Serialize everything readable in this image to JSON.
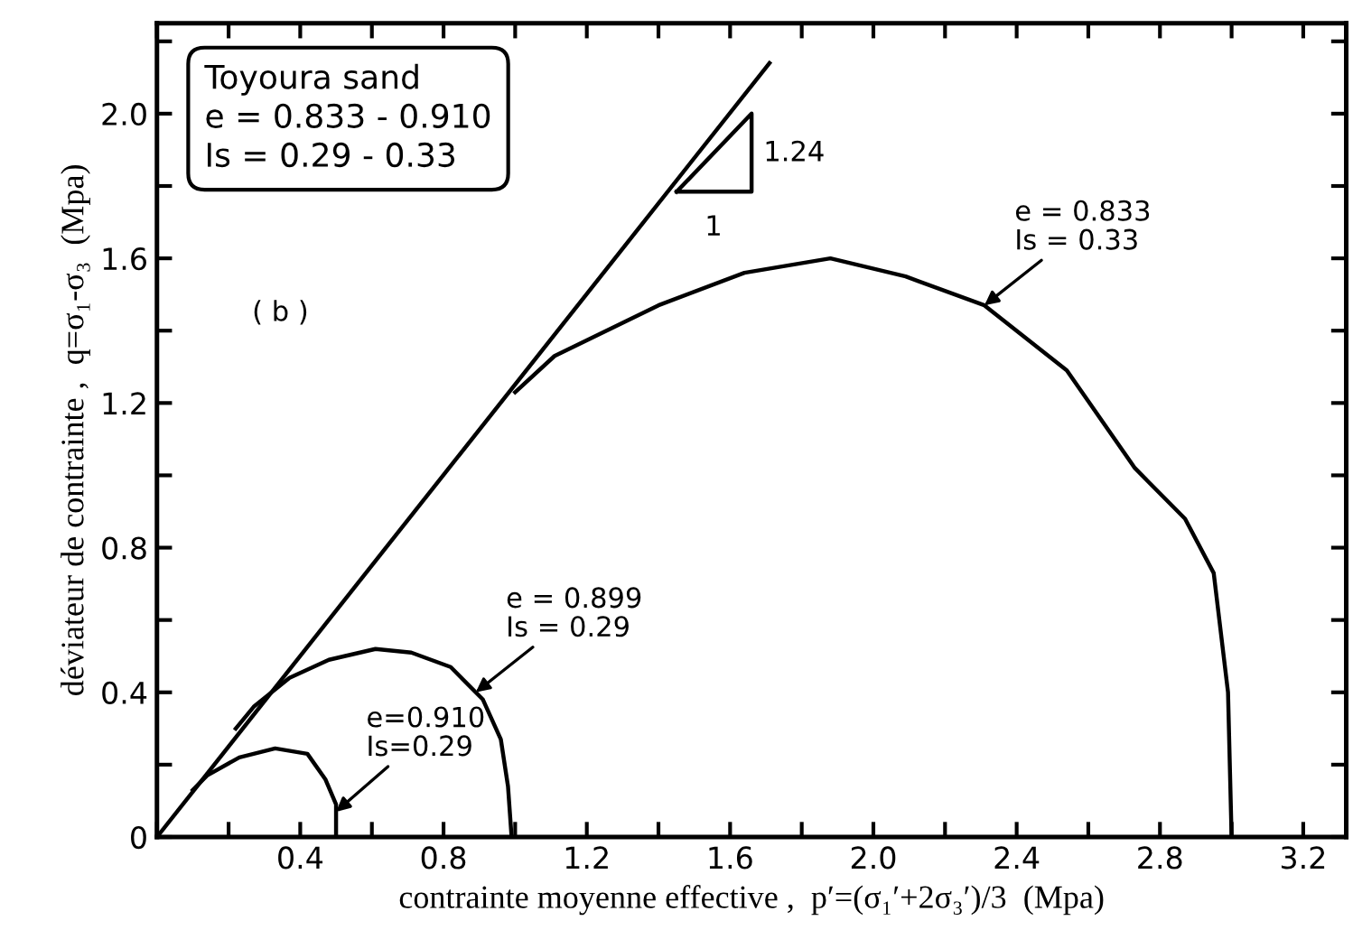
{
  "chart_data": {
    "type": "line",
    "xlabel": "contrainte moyenne effective ,  p′=(σ₁′+2σ₃′)/3  (Mpa)",
    "ylabel": "déviateur de contrainte ,  q=σ₁-σ₃  (Mpa)",
    "xlim": [
      0,
      3.32
    ],
    "ylim": [
      0,
      2.25
    ],
    "xticks": [
      {
        "value": 0,
        "label": null
      },
      {
        "value": 0.2,
        "label": null
      },
      0.4,
      {
        "value": 0.6,
        "label": null
      },
      0.8,
      {
        "value": 1.0,
        "label": null
      },
      1.2,
      {
        "value": 1.4,
        "label": null
      },
      1.6,
      {
        "value": 1.8,
        "label": null
      },
      {
        "value": 2.0,
        "label": "2.0"
      },
      {
        "value": 2.2,
        "label": null
      },
      2.4,
      {
        "value": 2.6,
        "label": null
      },
      2.8,
      {
        "value": 3.0,
        "label": null
      },
      3.2
    ],
    "yticks": [
      0,
      {
        "value": 0.2,
        "label": null
      },
      0.4,
      {
        "value": 0.6,
        "label": null
      },
      0.8,
      {
        "value": 1.0,
        "label": null
      },
      1.2,
      {
        "value": 1.4,
        "label": null
      },
      1.6,
      {
        "value": 1.8,
        "label": null
      },
      {
        "value": 2.0,
        "label": "2.0"
      },
      {
        "value": 2.2,
        "label": null
      }
    ],
    "grid": false,
    "marker": "none",
    "line_style": "solid",
    "series": [
      {
        "color": "#000000",
        "x": [
          0,
          1.71
        ],
        "values": [
          0,
          2.14
        ]
      },
      {
        "color": "#000000",
        "x": [
          1.0,
          1.11,
          1.4,
          1.64,
          1.88,
          2.09,
          2.31,
          2.54,
          2.73,
          2.87,
          2.95,
          2.99,
          3.0
        ],
        "values": [
          1.23,
          1.33,
          1.47,
          1.56,
          1.6,
          1.55,
          1.47,
          1.29,
          1.02,
          0.88,
          0.73,
          0.4,
          0
        ]
      },
      {
        "color": "#000000",
        "x": [
          0.99,
          0.98,
          0.96,
          0.91,
          0.82,
          0.71,
          0.61,
          0.48,
          0.37,
          0.27,
          0.22
        ],
        "values": [
          0,
          0.14,
          0.27,
          0.38,
          0.47,
          0.51,
          0.52,
          0.49,
          0.44,
          0.36,
          0.3
        ]
      },
      {
        "color": "#000000",
        "x": [
          0.5,
          0.5,
          0.47,
          0.42,
          0.33,
          0.23,
          0.14,
          0.1
        ],
        "values": [
          0,
          0.09,
          0.16,
          0.23,
          0.245,
          0.22,
          0.17,
          0.13
        ]
      }
    ],
    "annotations": [
      "Toyoura sand\ne = 0.833 - 0.910\nIs = 0.29 - 0.33",
      "( b )",
      "1.24",
      "1",
      {
        "text": "e = 0.833\nIs = 0.33",
        "x": 2.31,
        "y": 1.47
      },
      {
        "text": "e = 0.899\nIs = 0.29",
        "x": 0.89,
        "y": 0.4
      },
      {
        "text": "e=0.910\nIs=0.29",
        "x": 0.5,
        "y": 0.07
      }
    ]
  }
}
